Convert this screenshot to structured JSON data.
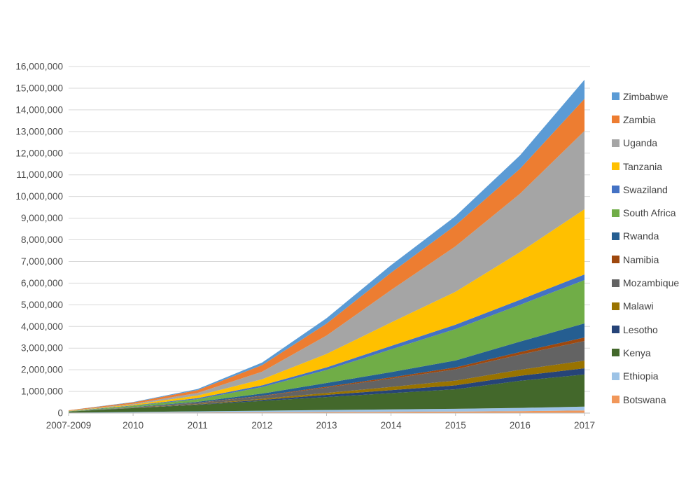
{
  "chart_data": {
    "type": "area",
    "stacked": true,
    "title": "",
    "xlabel": "",
    "ylabel": "",
    "x_categories": [
      "2007-2009",
      "2010",
      "2011",
      "2012",
      "2013",
      "2014",
      "2015",
      "2016",
      "2017"
    ],
    "y_axis": {
      "min": 0,
      "max": 16000000,
      "tick_interval": 1000000,
      "number_format": "thousands-separated"
    },
    "grid": true,
    "legend_position": "right",
    "stack_order": "bottom_to_top",
    "series": [
      {
        "name": "Botswana",
        "color": "#F1975A",
        "values": [
          10000,
          20000,
          30000,
          40000,
          50000,
          60000,
          70000,
          90000,
          120000
        ]
      },
      {
        "name": "Ethiopia",
        "color": "#9DC3E6",
        "values": [
          10000,
          30000,
          50000,
          70000,
          90000,
          110000,
          130000,
          150000,
          180000
        ]
      },
      {
        "name": "Kenya",
        "color": "#43682B",
        "values": [
          50000,
          180000,
          300000,
          450000,
          600000,
          750000,
          900000,
          1250000,
          1480000
        ]
      },
      {
        "name": "Lesotho",
        "color": "#264478",
        "values": [
          0,
          10000,
          20000,
          50000,
          100000,
          140000,
          180000,
          230000,
          290000
        ]
      },
      {
        "name": "Malawi",
        "color": "#997300",
        "values": [
          0,
          10000,
          20000,
          50000,
          90000,
          150000,
          220000,
          280000,
          350000
        ]
      },
      {
        "name": "Mozambique",
        "color": "#636363",
        "values": [
          0,
          20000,
          50000,
          120000,
          250000,
          380000,
          520000,
          700000,
          910000
        ]
      },
      {
        "name": "Namibia",
        "color": "#9E480E",
        "values": [
          0,
          0,
          10000,
          20000,
          40000,
          60000,
          90000,
          120000,
          160000
        ]
      },
      {
        "name": "Rwanda",
        "color": "#255E91",
        "values": [
          0,
          10000,
          40000,
          100000,
          170000,
          240000,
          320000,
          480000,
          650000
        ]
      },
      {
        "name": "South Africa",
        "color": "#70AD47",
        "values": [
          10000,
          50000,
          120000,
          300000,
          600000,
          1050000,
          1450000,
          1700000,
          2000000
        ]
      },
      {
        "name": "Swaziland",
        "color": "#4472C4",
        "values": [
          10000,
          20000,
          50000,
          80000,
          120000,
          160000,
          200000,
          230000,
          260000
        ]
      },
      {
        "name": "Tanzania",
        "color": "#FFC000",
        "values": [
          10000,
          40000,
          120000,
          280000,
          620000,
          1080000,
          1520000,
          2200000,
          3010000
        ]
      },
      {
        "name": "Uganda",
        "color": "#A5A5A5",
        "values": [
          10000,
          40000,
          120000,
          350000,
          850000,
          1500000,
          2100000,
          2700000,
          3620000
        ]
      },
      {
        "name": "Zambia",
        "color": "#ED7D31",
        "values": [
          20000,
          60000,
          130000,
          300000,
          550000,
          800000,
          970000,
          1150000,
          1480000
        ]
      },
      {
        "name": "Zimbabwe",
        "color": "#5B9BD5",
        "values": [
          0,
          20000,
          50000,
          120000,
          250000,
          350000,
          420000,
          620000,
          880000
        ]
      }
    ],
    "legend_items": [
      "Zimbabwe",
      "Zambia",
      "Uganda",
      "Tanzania",
      "Swaziland",
      "South Africa",
      "Rwanda",
      "Namibia",
      "Mozambique",
      "Malawi",
      "Lesotho",
      "Kenya",
      "Ethiopia",
      "Botswana"
    ]
  },
  "style_colors": {
    "gridline": "#D9D9D9",
    "axis_line": "#BFBFBF",
    "axis_text": "#4d4d4d",
    "legend_text": "#404040",
    "background": "#ffffff"
  }
}
